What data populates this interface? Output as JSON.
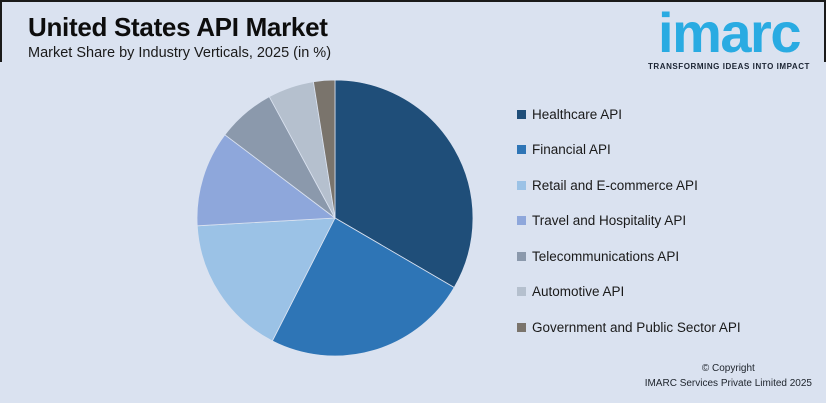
{
  "header": {
    "title": "United States API Market",
    "subtitle": "Market Share by Industry Verticals, 2025 (in %)"
  },
  "logo": {
    "brand": "imarc",
    "tagline": "TRANSFORMING IDEAS INTO IMPACT",
    "brand_color": "#29ABE2"
  },
  "footer": {
    "copyright_line1": "© Copyright",
    "copyright_line2": "IMARC Services Private Limited 2025"
  },
  "colors": {
    "background": "#DAE2F0",
    "edge_border": "#1A1A1A"
  },
  "chart_data": {
    "type": "pie",
    "title": "United States API Market",
    "subtitle": "Market Share by Industry Verticals, 2025 (in %)",
    "unit": "%",
    "start_angle_deg": 0,
    "direction": "clockwise",
    "legend_position": "right",
    "labels": [
      "Healthcare API",
      "Financial API",
      "Retail and E-commerce API",
      "Travel and Hospitality API",
      "Telecommunications API",
      "Automotive API",
      "Government and Public Sector API"
    ],
    "values": [
      33.4,
      24.1,
      16.6,
      11.2,
      6.8,
      5.4,
      2.5
    ],
    "colors": [
      "#1F4E79",
      "#2E75B6",
      "#9BC2E6",
      "#8EA7DB",
      "#8B99AC",
      "#B5C0CE",
      "#7A746C"
    ]
  }
}
